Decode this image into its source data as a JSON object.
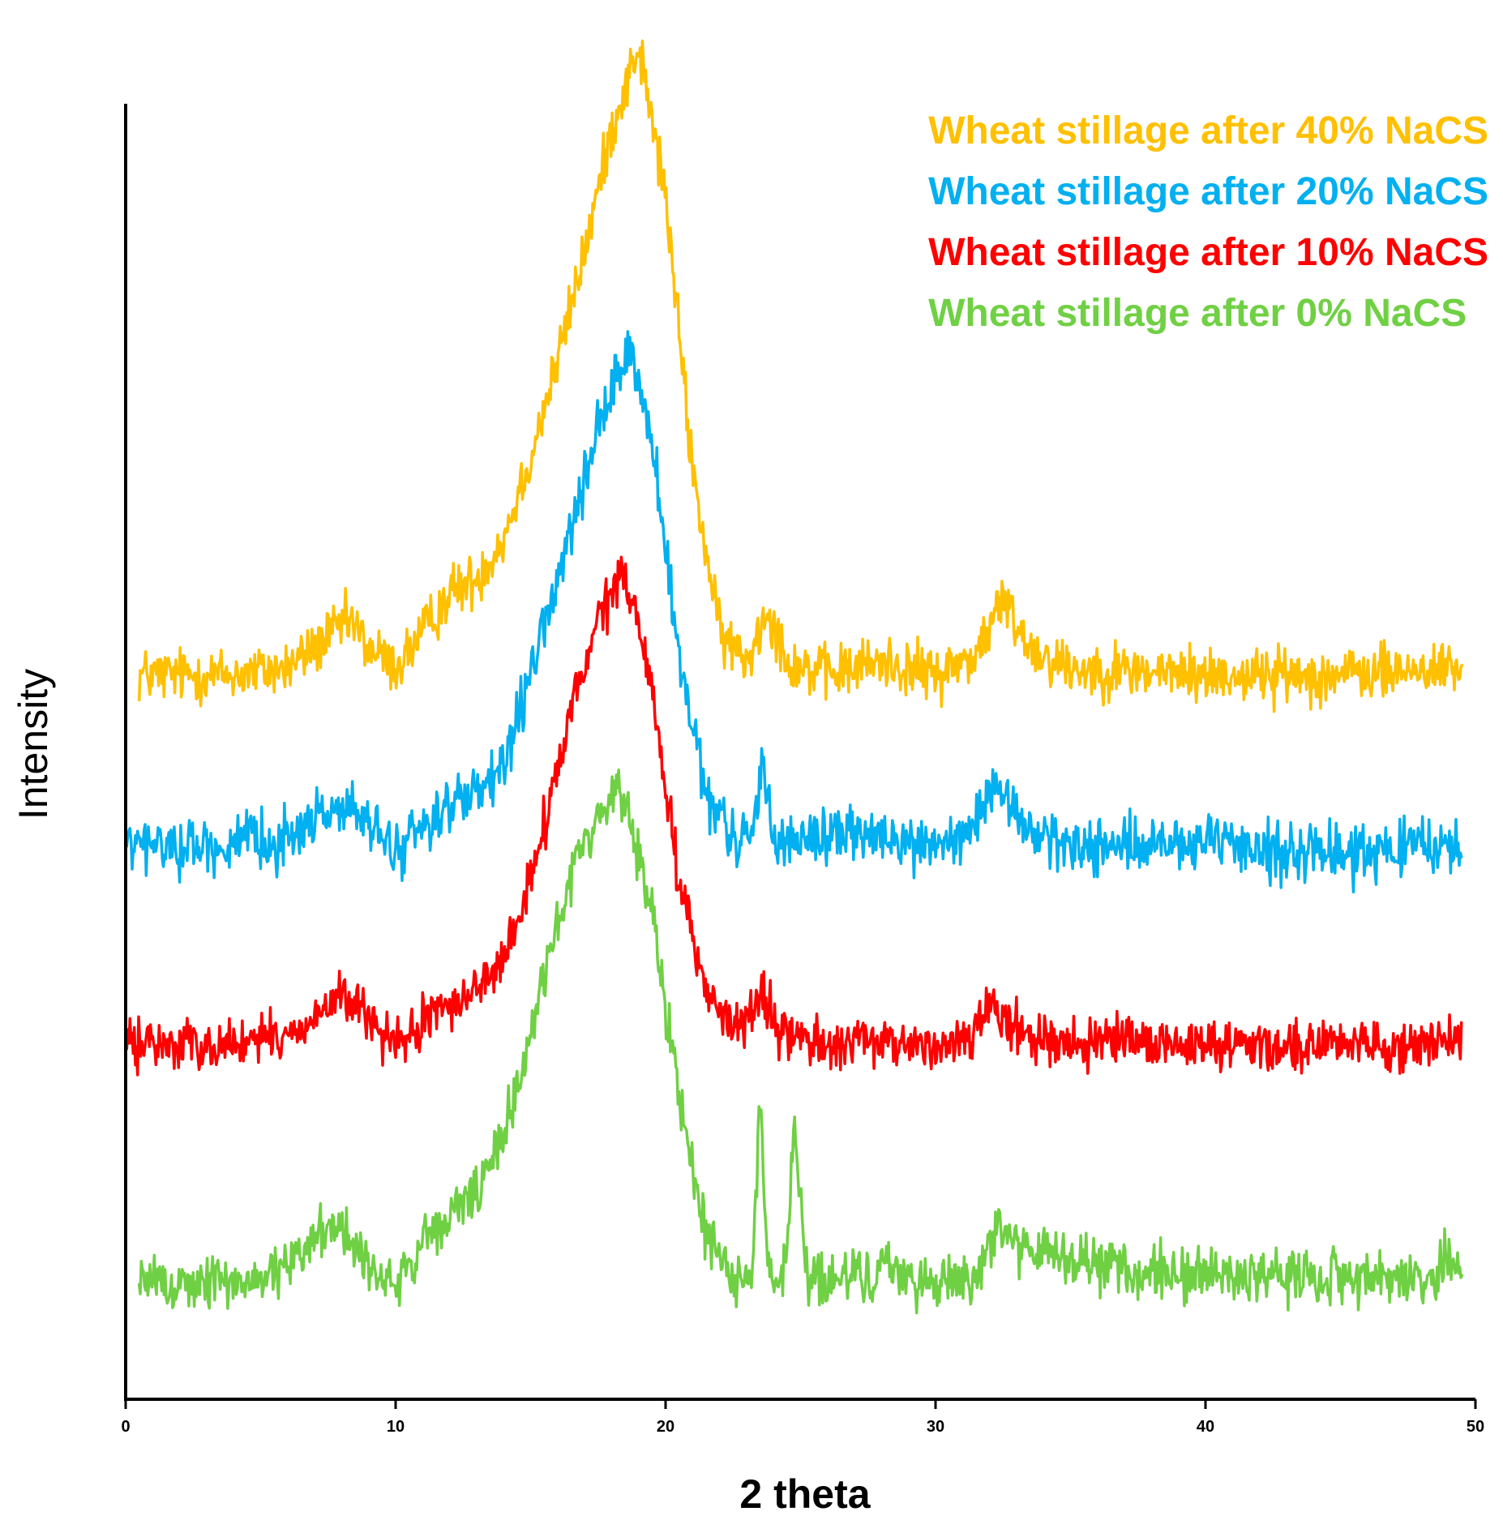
{
  "chart_data": {
    "type": "line",
    "title": "",
    "xlabel": "2 theta",
    "ylabel": "Intensity",
    "xlim": [
      0,
      50
    ],
    "ylim": [
      0,
      100
    ],
    "x_ticks": [
      0,
      10,
      20,
      30,
      40,
      50
    ],
    "x_tick_labels": [
      "0",
      "10",
      "20",
      "30",
      "40",
      "50"
    ],
    "y_ticks_shown": false,
    "grid": false,
    "legend_position": "top-right",
    "series": [
      {
        "name": "Wheat stillage after 40% NaCS",
        "color": "#FFC000",
        "baseline": 53,
        "noise": 1.0,
        "x": [
          0.5,
          2,
          4,
          6,
          7,
          8.3,
          9,
          10,
          11,
          12,
          13,
          14,
          15,
          16,
          17,
          18,
          19,
          20,
          21,
          22,
          23,
          23.8,
          24.5,
          26,
          28,
          30,
          31.5,
          32.5,
          33.5,
          35,
          40,
          45,
          49.5
        ],
        "y": [
          53,
          53,
          53,
          53.5,
          55,
          57,
          55,
          53.5,
          56,
          59,
          60,
          63,
          69,
          76,
          84,
          93,
          99,
          88,
          68,
          56,
          54,
          58,
          54,
          53,
          54,
          53,
          54.5,
          58.5,
          55,
          53.5,
          53,
          53,
          53.5
        ]
      },
      {
        "name": "Wheat stillage after 20% NaCS",
        "color": "#00B0F0",
        "baseline": 40.5,
        "noise": 1.0,
        "x": [
          0,
          2,
          4,
          6,
          7,
          8,
          9,
          10,
          11,
          12,
          13,
          14,
          15,
          16,
          17,
          18,
          18.7,
          19.5,
          20.5,
          21.5,
          22.5,
          23.2,
          23.6,
          24,
          25,
          27,
          29,
          31,
          32.4,
          33.5,
          35,
          40,
          45,
          49.5
        ],
        "y": [
          40.5,
          40.5,
          40.5,
          41,
          42.5,
          43.5,
          42,
          40,
          42,
          43.5,
          44,
          46,
          53,
          60,
          67,
          74,
          77,
          70,
          54,
          44,
          41,
          41,
          47,
          41,
          41,
          41.5,
          40.5,
          41,
          44.5,
          41.5,
          40.5,
          40.5,
          40,
          40.5
        ]
      },
      {
        "name": "Wheat stillage after 10% NaCS",
        "color": "#FF0000",
        "baseline": 26,
        "noise": 0.9,
        "x": [
          0,
          2,
          4,
          6,
          7,
          8,
          9,
          10,
          11,
          12,
          13,
          14,
          15,
          16,
          17,
          18.4,
          19.5,
          20.5,
          21.5,
          22.5,
          23.5,
          24.5,
          26,
          28,
          30,
          31.5,
          32,
          33,
          35,
          40,
          45,
          49.5
        ],
        "y": [
          26,
          26,
          26,
          26.5,
          28,
          29.5,
          28,
          25.5,
          27.5,
          29,
          30,
          32,
          38,
          46,
          54,
          61,
          52,
          38,
          30,
          27,
          29,
          26.5,
          26,
          26,
          26,
          26.5,
          29.5,
          27,
          26,
          26,
          26,
          26
        ]
      },
      {
        "name": "Wheat stillage after 0% NaCS",
        "color": "#70D044",
        "baseline": 8.5,
        "noise": 1.0,
        "x": [
          0.5,
          2,
          4,
          6,
          7,
          7.5,
          8.5,
          9.5,
          10,
          11,
          12,
          13,
          14,
          15,
          16,
          17,
          18.3,
          19.5,
          20.5,
          21.5,
          22.5,
          23.2,
          23.5,
          23.8,
          24.4,
          24.8,
          25.2,
          26,
          28,
          30,
          31.5,
          32.3,
          33.5,
          35,
          36,
          40,
          45,
          48.5,
          49,
          49.5
        ],
        "y": [
          8.5,
          8.5,
          8.5,
          9.5,
          12,
          13,
          11.5,
          8.5,
          8.5,
          11,
          13.5,
          15,
          19,
          27,
          35,
          41,
          45,
          36,
          22,
          12,
          9,
          9,
          22,
          9,
          9,
          20,
          9,
          8.5,
          9.5,
          8.5,
          9,
          13,
          10.5,
          10.5,
          9.5,
          9,
          9,
          9,
          11,
          8.5
        ]
      }
    ]
  }
}
